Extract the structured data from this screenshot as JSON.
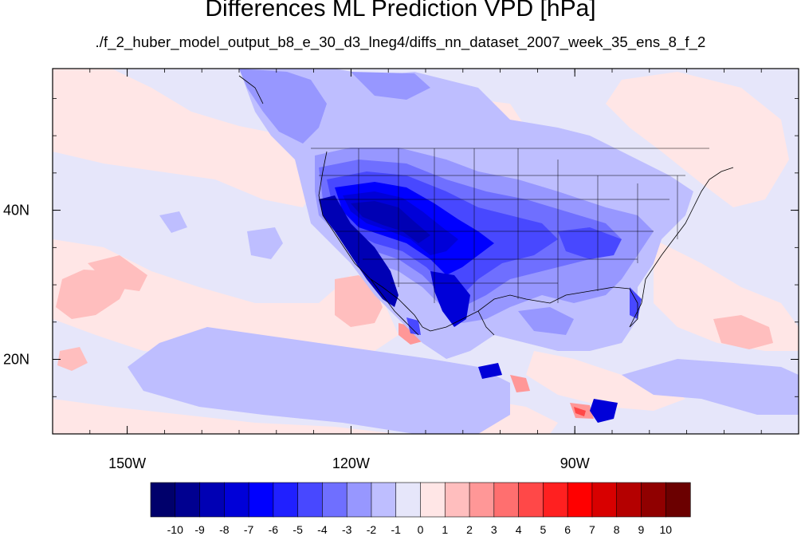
{
  "title": "Differences ML Prediction VPD [hPa]",
  "subtitle": "./f_2_huber_model_output_b8_e_30_d3_lneg4/diffs_nn_dataset_2007_week_35_ens_8_f_2",
  "map": {
    "projection": "cylindrical equidistant",
    "lon_range": [
      -160,
      -60
    ],
    "lat_range": [
      10,
      59
    ],
    "x_ticks": [
      {
        "lon": -150,
        "label": "150W"
      },
      {
        "lon": -120,
        "label": "120W"
      },
      {
        "lon": -90,
        "label": "90W"
      }
    ],
    "y_ticks": [
      {
        "lat": 40,
        "label": "40N"
      },
      {
        "lat": 20,
        "label": "20N"
      }
    ],
    "background_color": "#e6e6fa"
  },
  "colorbar": {
    "labels": [
      "-10",
      "-9",
      "-8",
      "-7",
      "-6",
      "-5",
      "-4",
      "-3",
      "-2",
      "-1",
      "0",
      "1",
      "2",
      "3",
      "4",
      "5",
      "6",
      "7",
      "8",
      "9",
      "10"
    ],
    "colors": [
      "#00006b",
      "#000090",
      "#0000b4",
      "#0000d8",
      "#0000ff",
      "#2020ff",
      "#4848ff",
      "#6f6fff",
      "#9797ff",
      "#bebeff",
      "#e6e6fa",
      "#ffe6e6",
      "#ffbebe",
      "#ff9797",
      "#ff6f6f",
      "#ff4848",
      "#ff2020",
      "#ff0000",
      "#d80000",
      "#b40000",
      "#900000",
      "#6b0000"
    ]
  }
}
